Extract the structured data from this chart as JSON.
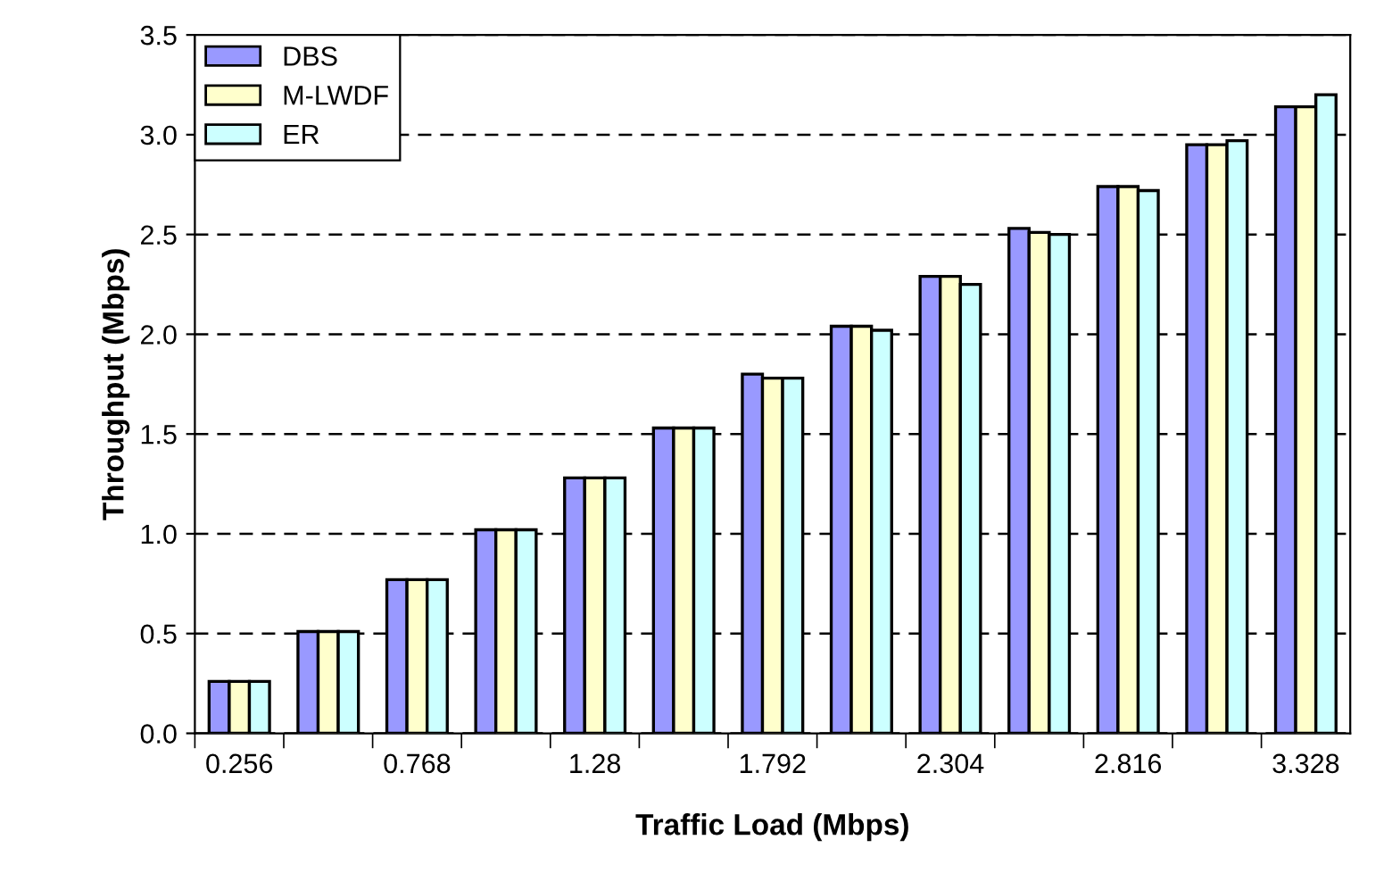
{
  "chart_data": {
    "type": "bar",
    "xlabel": "Traffic Load (Mbps)",
    "ylabel": "Throughput (Mbps)",
    "categories": [
      "0.256",
      null,
      "0.768",
      null,
      "1.28",
      null,
      "1.792",
      null,
      "2.304",
      null,
      "2.816",
      null,
      "3.328"
    ],
    "series": [
      {
        "name": "DBS",
        "color": "#9999ff",
        "values": [
          0.26,
          0.51,
          0.77,
          1.02,
          1.28,
          1.53,
          1.8,
          2.04,
          2.29,
          2.53,
          2.74,
          2.95,
          3.14
        ]
      },
      {
        "name": "M-LWDF",
        "color": "#ffffcc",
        "values": [
          0.26,
          0.51,
          0.77,
          1.02,
          1.28,
          1.53,
          1.78,
          2.04,
          2.29,
          2.51,
          2.74,
          2.95,
          3.14
        ]
      },
      {
        "name": "ER",
        "color": "#ccffff",
        "values": [
          0.26,
          0.51,
          0.77,
          1.02,
          1.28,
          1.53,
          1.78,
          2.02,
          2.25,
          2.5,
          2.72,
          2.97,
          3.2
        ]
      }
    ],
    "ylim": [
      0,
      3.5
    ],
    "yticks": [
      {
        "value": 0,
        "label": "0.0"
      },
      0.5,
      {
        "value": 1,
        "label": "1.0"
      },
      1.5,
      {
        "value": 2,
        "label": "2.0"
      },
      2.5,
      {
        "value": 3,
        "label": "3.0"
      },
      3.5
    ],
    "grid": "y",
    "legend": "top left"
  }
}
